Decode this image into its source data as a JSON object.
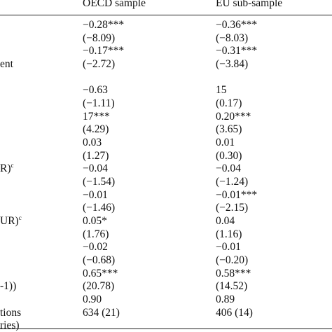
{
  "table": {
    "headers": [
      "OECD sample",
      "EU sub-sample"
    ],
    "rows": [
      {
        "label": "",
        "oecd": "−0.28***",
        "eu": "−0.36***"
      },
      {
        "label": "",
        "oecd": "(−8.09)",
        "eu": "(−8.03)"
      },
      {
        "label": "",
        "oecd": "−0.17***",
        "eu": "−0.31***"
      },
      {
        "label": "ent",
        "oecd": "(−2.72)",
        "eu": "(−3.84)"
      },
      {
        "label": "",
        "oecd": "",
        "eu": ""
      },
      {
        "label": "",
        "oecd": "−0.63",
        "eu": "15"
      },
      {
        "label": "",
        "oecd": "(−1.11)",
        "eu": "(0.17)"
      },
      {
        "label": "",
        "oecd": "17***",
        "eu": "0.20***"
      },
      {
        "label": "",
        "oecd": "(4.29)",
        "eu": "(3.65)"
      },
      {
        "label": "",
        "oecd": "0.03",
        "eu": "0.01"
      },
      {
        "label": "",
        "oecd": "(1.27)",
        "eu": "(0.30)"
      },
      {
        "label": "R)",
        "sup": "c",
        "oecd": "−0.04",
        "eu": "−0.04"
      },
      {
        "label": "",
        "oecd": "(−1.54)",
        "eu": "(−1.24)"
      },
      {
        "label": "",
        "oecd": "−0.01",
        "eu": "−0.01***"
      },
      {
        "label": "",
        "oecd": "(−1.46)",
        "eu": "(−2.15)"
      },
      {
        "label": "UR)",
        "sup": "c",
        "oecd": "0.05*",
        "eu": "0.04"
      },
      {
        "label": "",
        "oecd": "(1.76)",
        "eu": "(1.16)"
      },
      {
        "label": "",
        "oecd": "−0.02",
        "eu": "−0.01"
      },
      {
        "label": "",
        "oecd": "(−0.68)",
        "eu": "(−0.20)"
      },
      {
        "label": "",
        "oecd": "0.65***",
        "eu": "0.58***"
      },
      {
        "label": "-1))",
        "oecd": "(20.78)",
        "eu": "(14.52)"
      },
      {
        "label": "",
        "oecd": "0.90",
        "eu": "0.89"
      },
      {
        "label": "tions",
        "oecd": "634 (21)",
        "eu": "406 (14)"
      },
      {
        "label": "ries)",
        "oecd": "",
        "eu": ""
      }
    ]
  }
}
